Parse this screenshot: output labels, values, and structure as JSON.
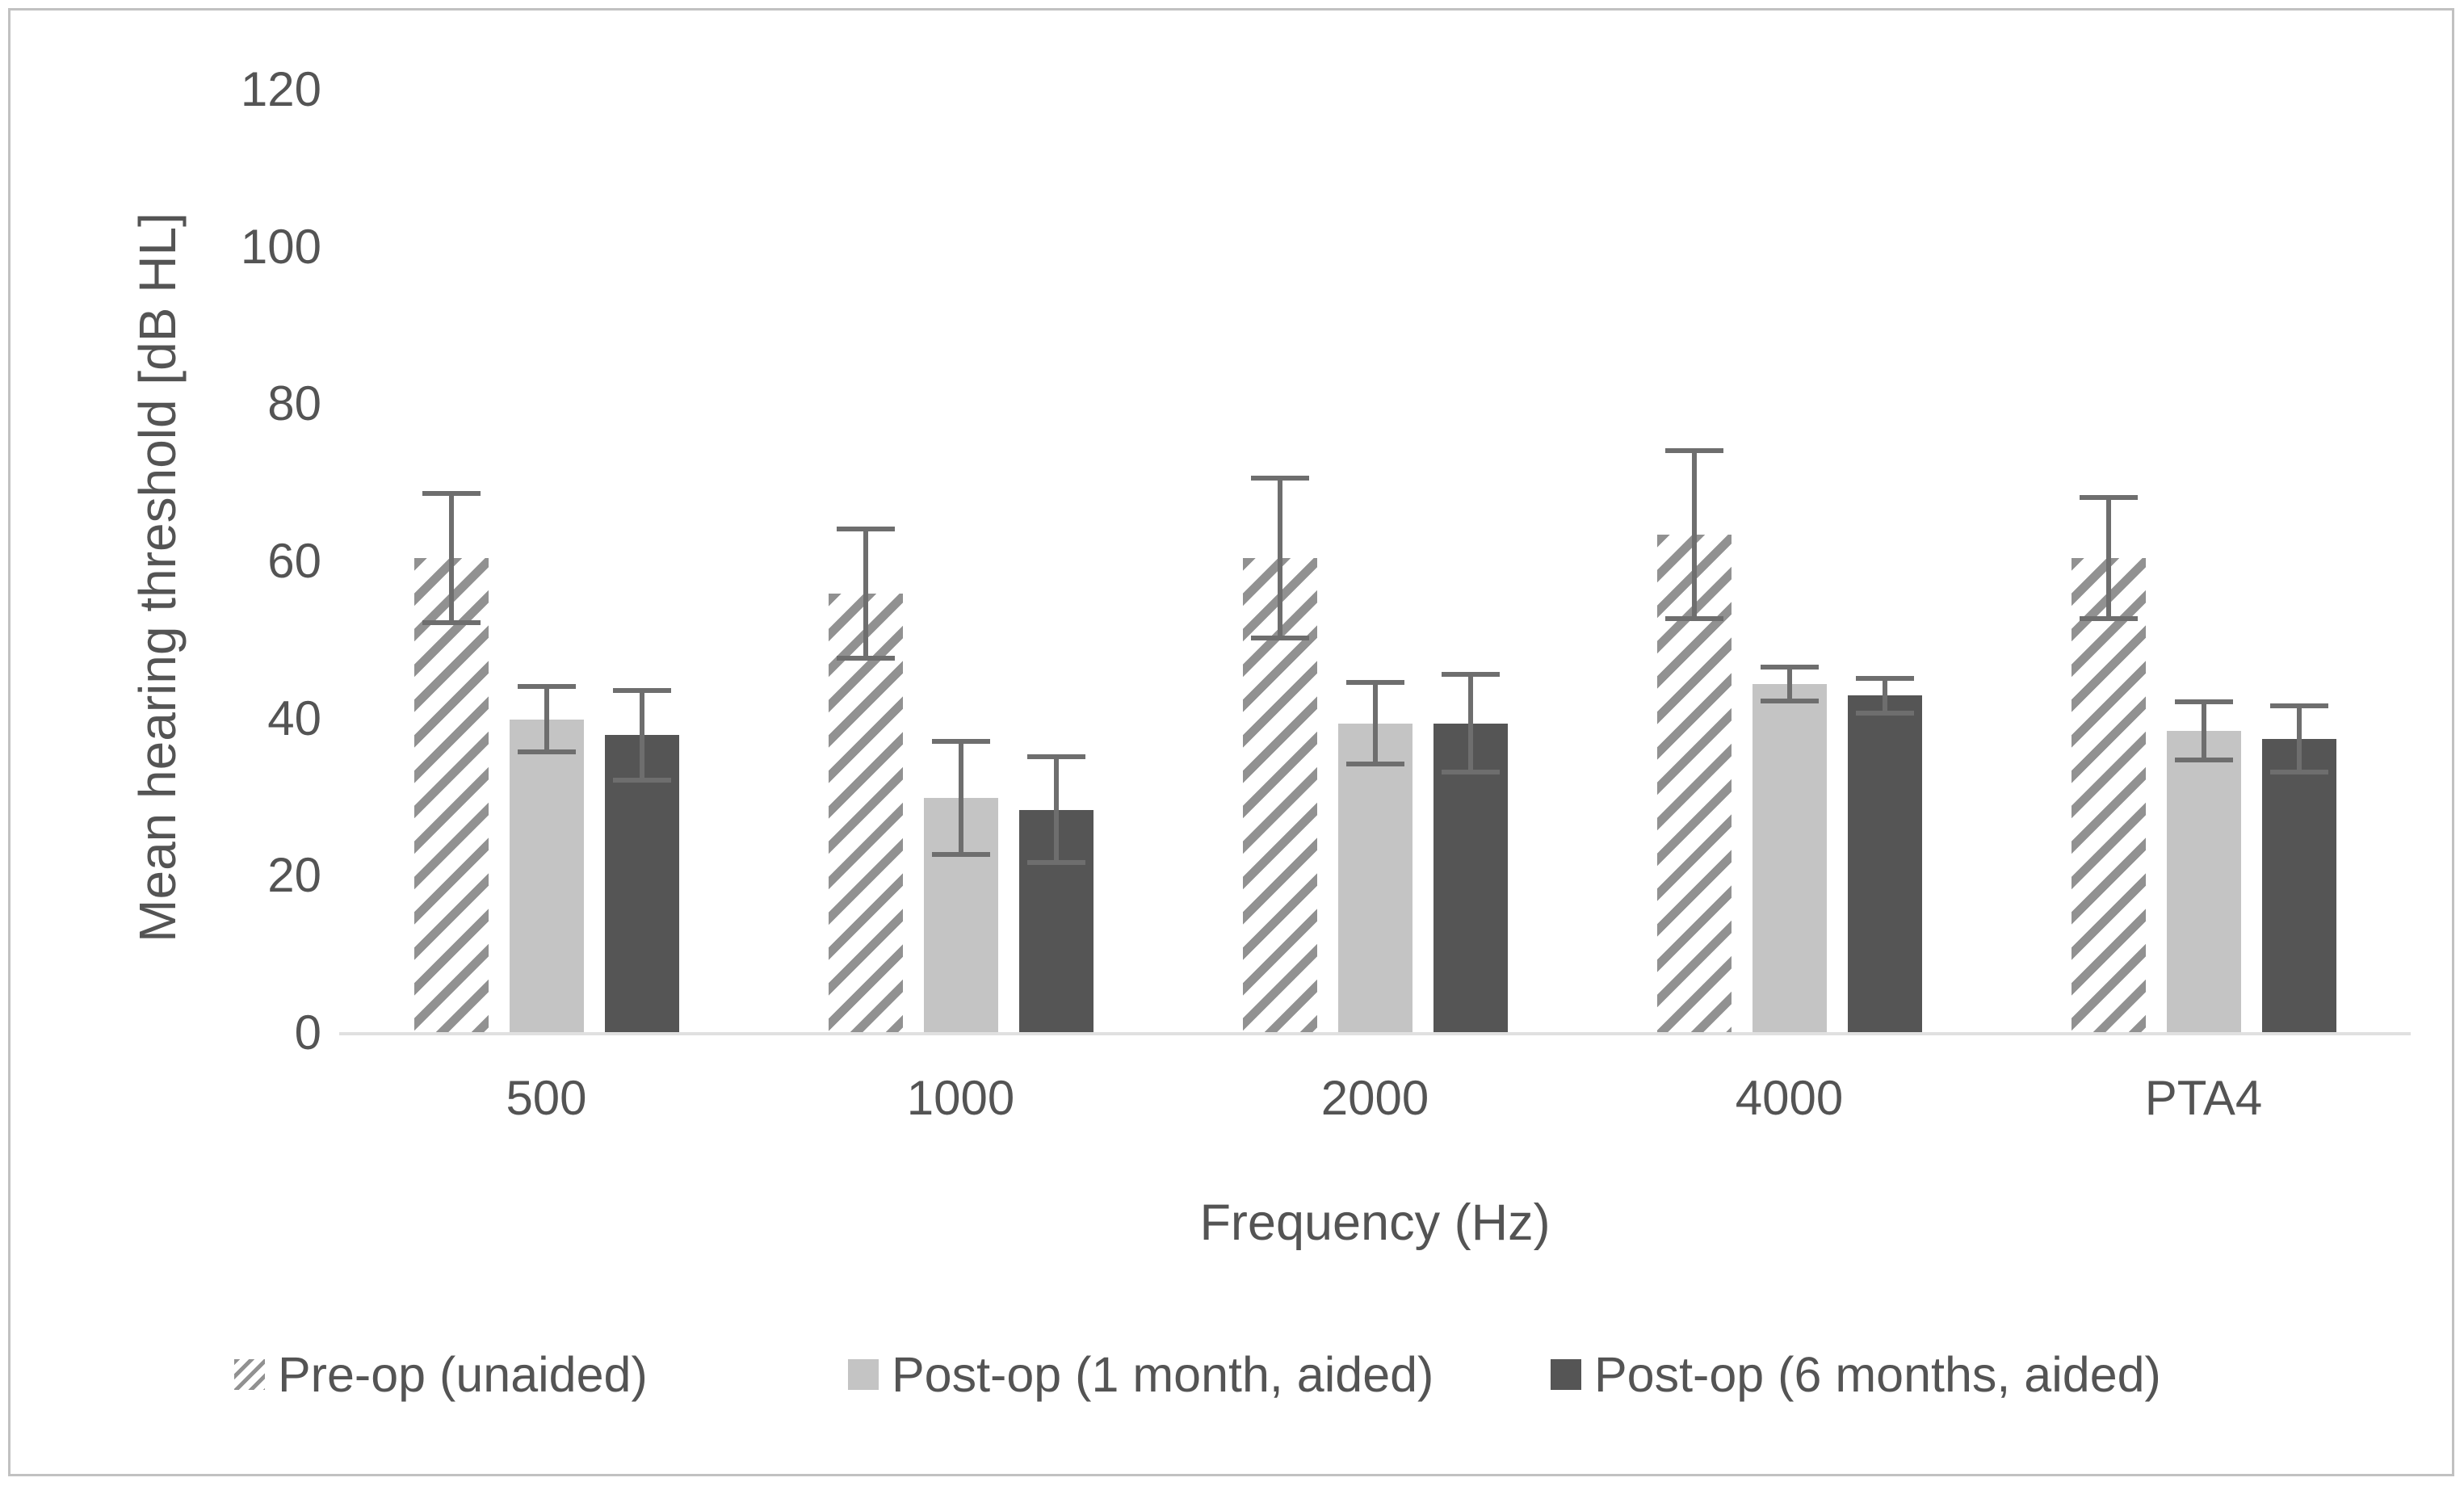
{
  "figure": {
    "background": "#ffffff",
    "border_color": "#c1c1c1"
  },
  "colors": {
    "text": "#545454",
    "axis_line": "#e0e0e0",
    "error_bar": "#6e6e6e",
    "bar_light": "#c4c4c4",
    "bar_dark": "#555555",
    "hatch_stroke": "#919191",
    "hatch_background": "#ffffff"
  },
  "chart_data": {
    "type": "bar",
    "title": "",
    "categories": [
      "500",
      "1000",
      "2000",
      "4000",
      "PTA4"
    ],
    "xlabel": "Frequency (Hz)",
    "ylabel": "Mean hearing threshold [dB HL]",
    "ylim": [
      0,
      120
    ],
    "yticks": [
      0,
      20,
      40,
      60,
      80,
      100,
      120
    ],
    "ytick_labels": [
      "0",
      "20",
      "40",
      "60",
      "80",
      "100",
      "120"
    ],
    "grid": false,
    "legend_position": "bottom",
    "error_bars": "symmetric, values in dB",
    "series": [
      {
        "name": "Pre-op (unaided)",
        "style": "hatched",
        "values": [
          60.5,
          56,
          60.5,
          63.5,
          60.5
        ],
        "errors": [
          8.5,
          8.5,
          10.5,
          11,
          8
        ]
      },
      {
        "name": "Post-op (1 month, aided)",
        "style": "light",
        "values": [
          40,
          30,
          39.5,
          44.5,
          38.5
        ],
        "errors": [
          4.5,
          7.5,
          5.5,
          2.5,
          4
        ]
      },
      {
        "name": "Post-op (6 months, aided)",
        "style": "dark",
        "values": [
          38,
          28.5,
          39.5,
          43,
          37.5
        ],
        "errors": [
          6,
          7,
          6.5,
          2.5,
          4.5
        ]
      }
    ]
  }
}
